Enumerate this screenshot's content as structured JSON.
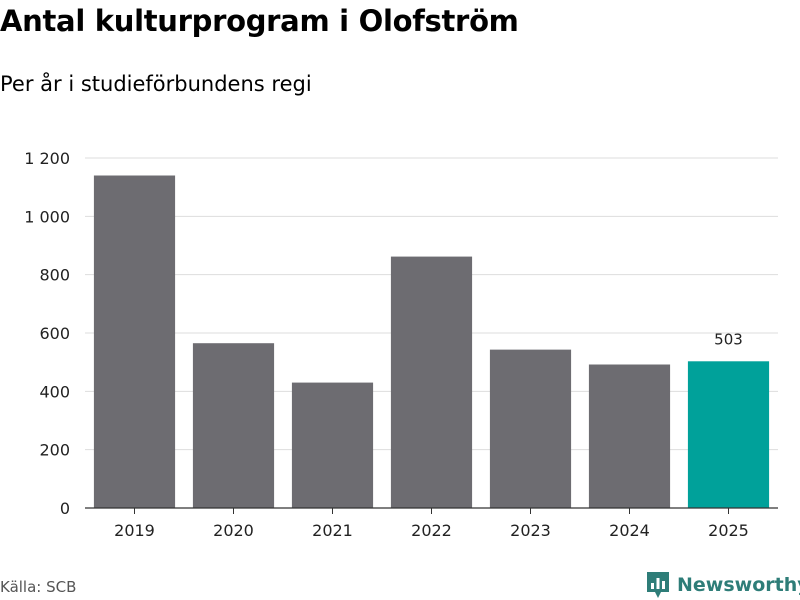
{
  "header": {
    "title": "Antal kulturprogram i Olofström",
    "subtitle": "Per år i studieförbundens regi"
  },
  "footer": {
    "source": "Källa: SCB",
    "brand": "Newsworthy"
  },
  "colors": {
    "bar": "#6d6c71",
    "highlight": "#00a19a",
    "grid": "#dddddd",
    "axis": "#333333",
    "brand": "#2e7d78"
  },
  "chart_data": {
    "type": "bar",
    "title": "Antal kulturprogram i Olofström",
    "subtitle": "Per år i studieförbundens regi",
    "xlabel": "",
    "ylabel": "",
    "categories": [
      "2019",
      "2020",
      "2021",
      "2022",
      "2023",
      "2024",
      "2025"
    ],
    "values": [
      1140,
      565,
      430,
      862,
      543,
      492,
      503
    ],
    "highlight_index": 6,
    "data_labels": [
      {
        "index": 6,
        "text": "503"
      }
    ],
    "ylim": [
      0,
      1200
    ],
    "yticks": [
      0,
      200,
      400,
      600,
      800,
      1000,
      1200
    ],
    "ytick_labels": [
      "0",
      "200",
      "400",
      "600",
      "800",
      "1 000",
      "1 200"
    ],
    "grid": true,
    "legend": "none"
  }
}
